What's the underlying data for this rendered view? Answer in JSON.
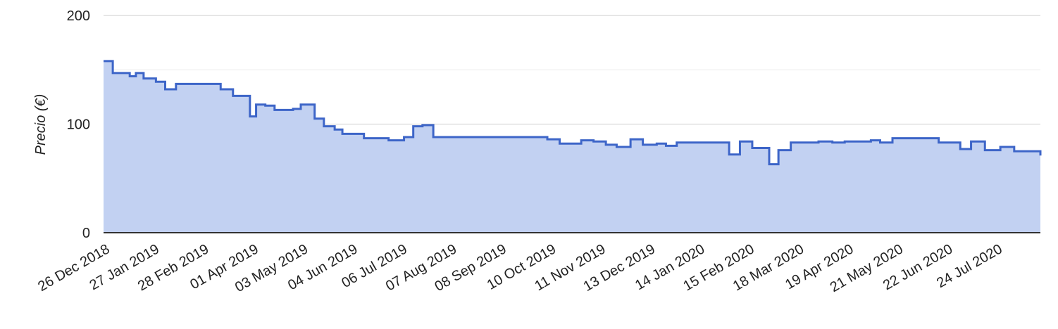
{
  "chart_data": {
    "type": "area",
    "step": true,
    "title": "",
    "xlabel": "",
    "ylabel": "Precio (€)",
    "ylim": [
      0,
      200
    ],
    "y_ticks": [
      "0",
      "100",
      "200"
    ],
    "x_tick_labels": [
      "26 Dec 2018",
      "27 Jan 2019",
      "28 Feb 2019",
      "01 Apr 2019",
      "03 May 2019",
      "04 Jun 2019",
      "06 Jul 2019",
      "07 Aug 2019",
      "08 Sep 2019",
      "10 Oct 2019",
      "11 Nov 2019",
      "13 Dec 2019",
      "14 Jan 2020",
      "15 Feb 2020",
      "18 Mar 2020",
      "19 Apr 2020",
      "21 May 2020",
      "22 Jun 2020",
      "24 Jul 2020"
    ],
    "x_range": [
      "2018-12-26",
      "2020-08-25"
    ],
    "grid": true,
    "colors": {
      "line": "#3d65c8",
      "fill": "#c2d1f2",
      "grid": "#cccccc",
      "axis": "#333333"
    },
    "series": [
      {
        "x": [
          "2018-12-26",
          "2019-01-01",
          "2019-01-12",
          "2019-01-16",
          "2019-01-21",
          "2019-01-29",
          "2019-02-04",
          "2019-02-11",
          "2019-02-17",
          "2019-03-12",
          "2019-03-20",
          "2019-03-31",
          "2019-04-04",
          "2019-04-10",
          "2019-04-16",
          "2019-04-28",
          "2019-05-03",
          "2019-05-12",
          "2019-05-18",
          "2019-05-25",
          "2019-05-30",
          "2019-06-05",
          "2019-06-13",
          "2019-06-29",
          "2019-07-09",
          "2019-07-15",
          "2019-07-21",
          "2019-07-28",
          "2019-08-08",
          "2019-10-10",
          "2019-10-18",
          "2019-11-01",
          "2019-11-09",
          "2019-11-17",
          "2019-11-24",
          "2019-12-03",
          "2019-12-11",
          "2019-12-20",
          "2019-12-26",
          "2020-01-02",
          "2020-01-06",
          "2020-02-05",
          "2020-02-12",
          "2020-02-20",
          "2020-03-02",
          "2020-03-08",
          "2020-03-16",
          "2020-04-03",
          "2020-04-12",
          "2020-04-20",
          "2020-05-07",
          "2020-05-13",
          "2020-05-21",
          "2020-06-20",
          "2020-06-28",
          "2020-07-04",
          "2020-07-11",
          "2020-07-20",
          "2020-07-30",
          "2020-08-08",
          "2020-08-25"
        ],
        "values": [
          158,
          147,
          144,
          147,
          142,
          139,
          132,
          137,
          137,
          132,
          126,
          107,
          118,
          117,
          113,
          114,
          118,
          105,
          98,
          95,
          91,
          91,
          87,
          85,
          88,
          98,
          99,
          88,
          88,
          86,
          82,
          85,
          84,
          81,
          79,
          86,
          81,
          82,
          80,
          83,
          83,
          72,
          84,
          78,
          63,
          76,
          83,
          84,
          83,
          84,
          85,
          83,
          87,
          83,
          83,
          77,
          84,
          76,
          79,
          75,
          71
        ]
      }
    ]
  }
}
